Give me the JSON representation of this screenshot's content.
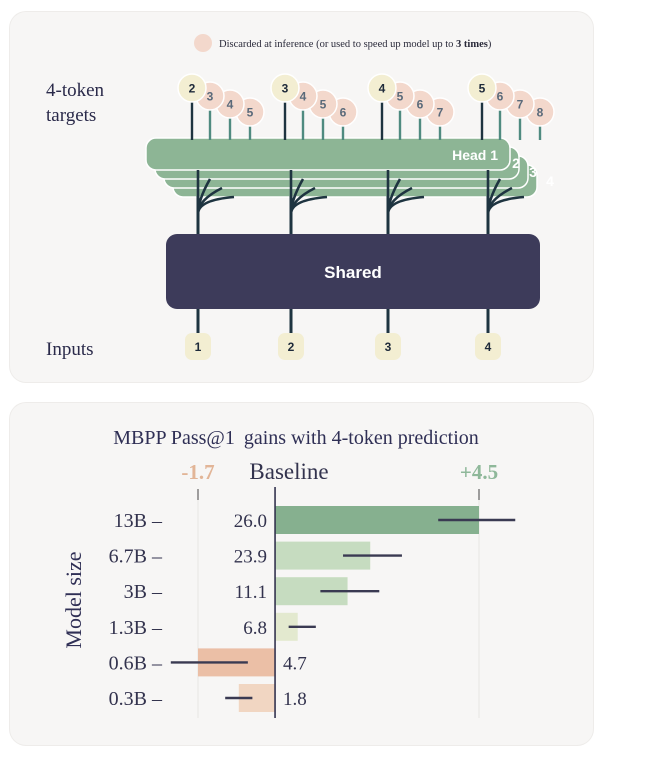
{
  "top_panel": {
    "legend_text": "Discarded at inference (or used to speed up model up to ",
    "legend_bold": "3 times",
    "legend_close": ")",
    "targets_label_line1": "4-token",
    "targets_label_line2": "targets",
    "inputs_label": "Inputs",
    "shared_label": "Shared",
    "head_label_main": "Head 1",
    "head_numbers": [
      "2",
      "3",
      "4"
    ],
    "input_tokens": [
      "1",
      "2",
      "3",
      "4"
    ],
    "target_groups": [
      [
        "2",
        "3",
        "4",
        "5"
      ],
      [
        "3",
        "4",
        "5",
        "6"
      ],
      [
        "4",
        "5",
        "6",
        "7"
      ],
      [
        "5",
        "6",
        "7",
        "8"
      ]
    ],
    "colors": {
      "head_green": "#8db595",
      "shared_dark": "#3d3b5a",
      "token_cream": "#f3eed2",
      "discarded_peach": "#f3d8cc",
      "stem_dark": "#1e3440",
      "stem_green": "#4f8b80"
    }
  },
  "bottom_panel": {
    "title_part1": "MBPP Pass@1",
    "title_part2": "gains with 4-token prediction",
    "left_marker": "-1.7",
    "baseline_label": "Baseline",
    "right_marker": "+4.5",
    "y_axis_label": "Model size"
  },
  "chart_data": {
    "type": "bar",
    "orientation": "horizontal",
    "title": "MBPP Pass@1  gains with 4-token prediction",
    "ylabel": "Model size",
    "categories": [
      "13B",
      "6.7B",
      "3B",
      "1.3B",
      "0.6B",
      "0.3B"
    ],
    "baseline_scores": [
      "26.0",
      "23.9",
      "11.1",
      "6.8",
      "4.7",
      "1.8"
    ],
    "gains": [
      4.5,
      2.1,
      1.6,
      0.5,
      -1.7,
      -0.8
    ],
    "error_low": [
      3.6,
      1.5,
      1.0,
      0.3,
      -2.3,
      -1.1
    ],
    "error_high": [
      5.3,
      2.8,
      2.3,
      0.9,
      -0.6,
      -0.5
    ],
    "xlim": [
      -1.7,
      4.5
    ],
    "bar_colors": [
      "#86b08f",
      "#c6dcc0",
      "#c6dcc0",
      "#e3e9cf",
      "#ebbfa6",
      "#f1d6c2"
    ],
    "error_bar_color": "#3a3a52"
  }
}
